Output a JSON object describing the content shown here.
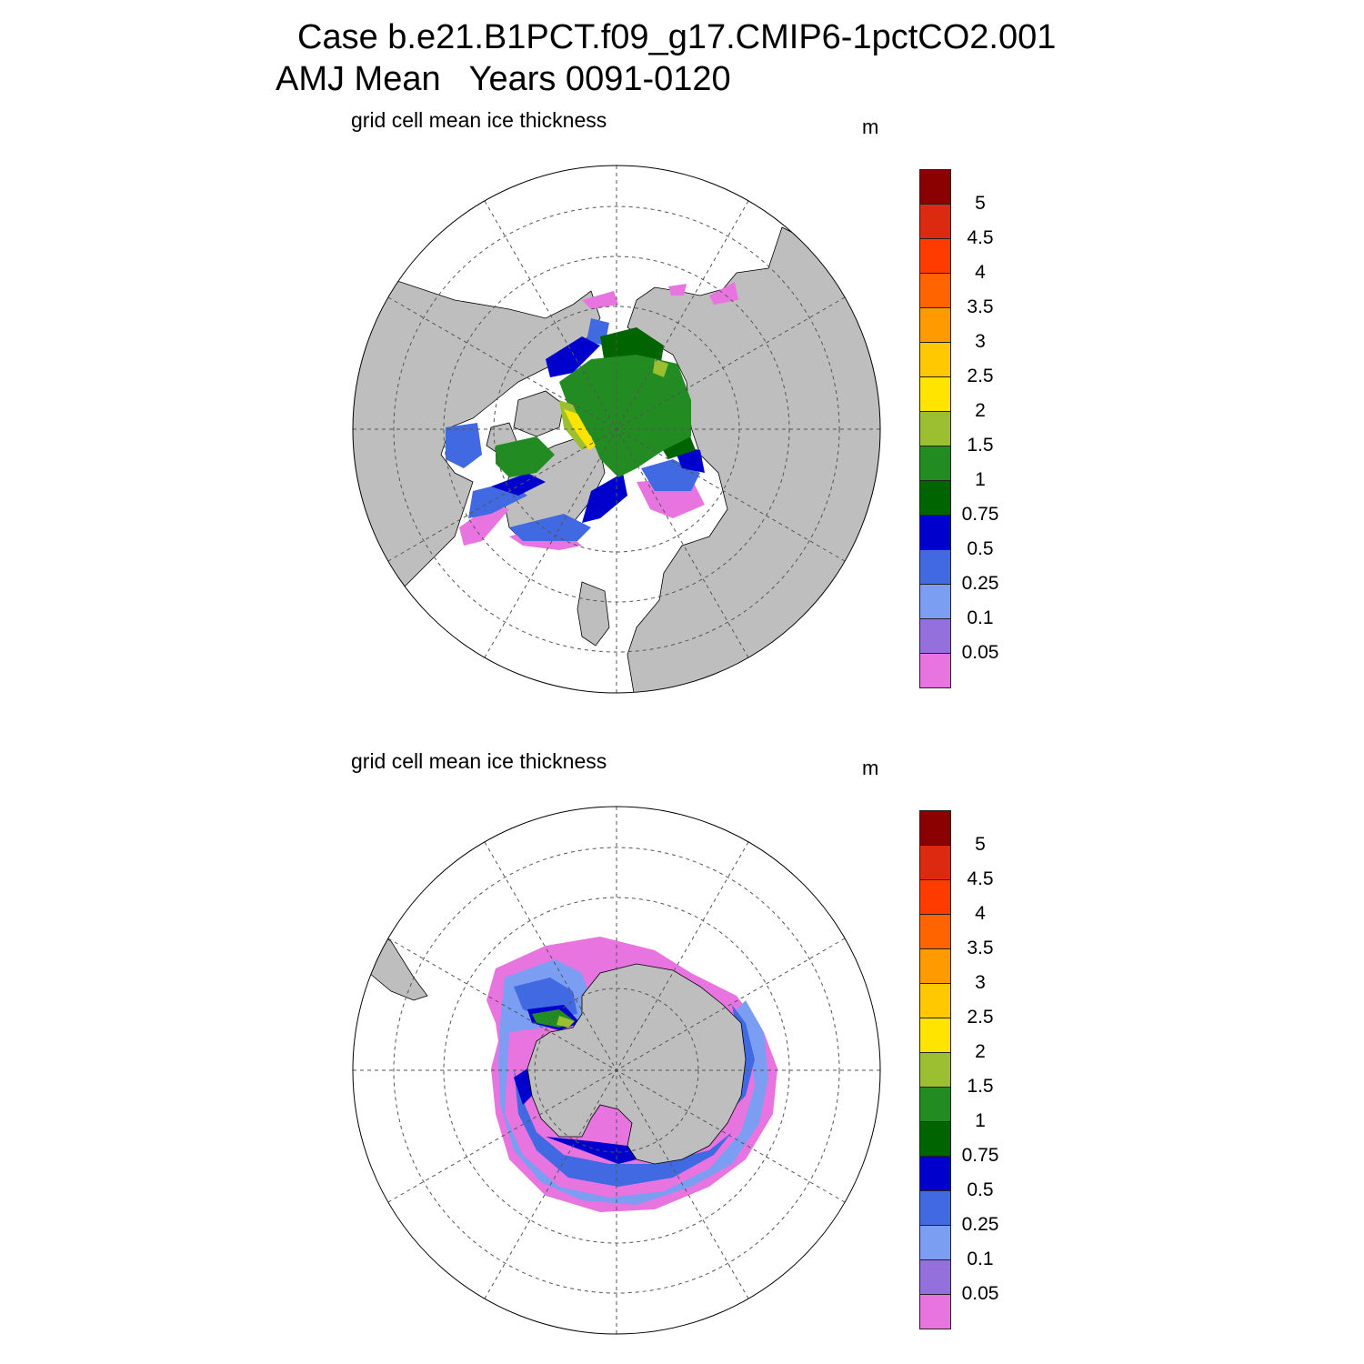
{
  "title": {
    "line1": "Case b.e21.B1PCT.f09_g17.CMIP6-1pctCO2.001",
    "line2": "AMJ Mean   Years 0091-0120"
  },
  "colors": {
    "land": "#bebebe",
    "ocean": "#ffffff",
    "grid": "#555555"
  },
  "colorbar": {
    "labels": [
      "5",
      "4.5",
      "4",
      "3.5",
      "3",
      "2.5",
      "2",
      "1.5",
      "1",
      "0.75",
      "0.5",
      "0.25",
      "0.1",
      "0.05"
    ],
    "colors": [
      "#8b0000",
      "#dc2a10",
      "#ff3b00",
      "#ff6400",
      "#ff9a00",
      "#ffc800",
      "#ffe400",
      "#9bbf30",
      "#228b22",
      "#006400",
      "#0000cd",
      "#4169e1",
      "#7b9ef3",
      "#9370db",
      "#e874e0"
    ]
  },
  "panels": [
    {
      "id": "nh",
      "variable": "grid cell mean ice thickness",
      "units": "m",
      "hemisphere": "Northern"
    },
    {
      "id": "sh",
      "variable": "grid cell mean ice thickness",
      "units": "m",
      "hemisphere": "Southern"
    }
  ]
}
